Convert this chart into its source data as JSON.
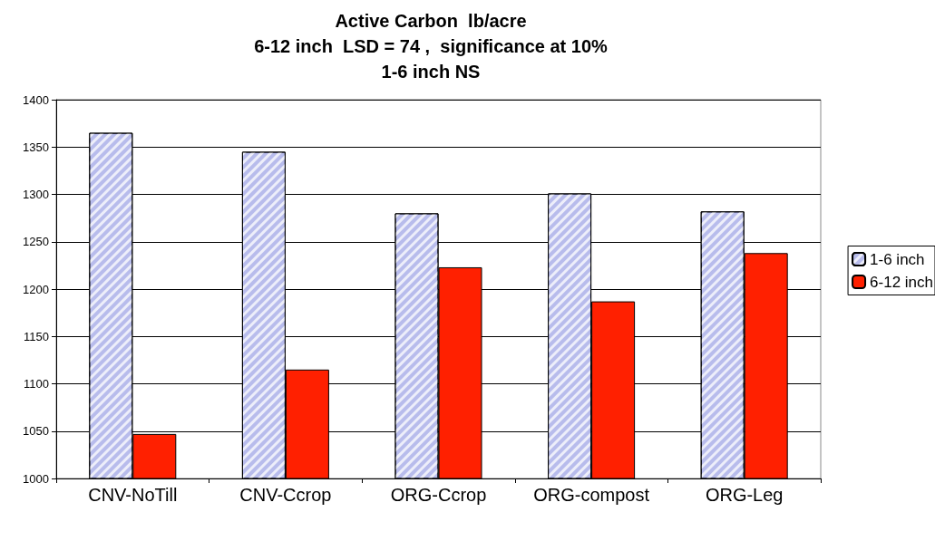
{
  "chart_data": {
    "type": "bar",
    "title": "Active Carbon  lb/acre",
    "subtitle": "6-12 inch  LSD = 74 ,  significance at 10%\n1-6 inch NS",
    "categories": [
      "CNV-NoTill",
      "CNV-Ccrop",
      "ORG-Ccrop",
      "ORG-compost",
      "ORG-Leg"
    ],
    "series": [
      {
        "name": "1-6 inch",
        "color": "#b8bcec",
        "values": [
          1365,
          1345,
          1280,
          1301,
          1282
        ]
      },
      {
        "name": "6-12 inch",
        "color": "#ff2000",
        "values": [
          1047,
          1115,
          1223,
          1187,
          1238
        ]
      }
    ],
    "ylim": [
      1000,
      1400
    ],
    "yticks": [
      1000,
      1050,
      1100,
      1150,
      1200,
      1250,
      1300,
      1350,
      1400
    ],
    "grid": "y",
    "legend": "right"
  }
}
